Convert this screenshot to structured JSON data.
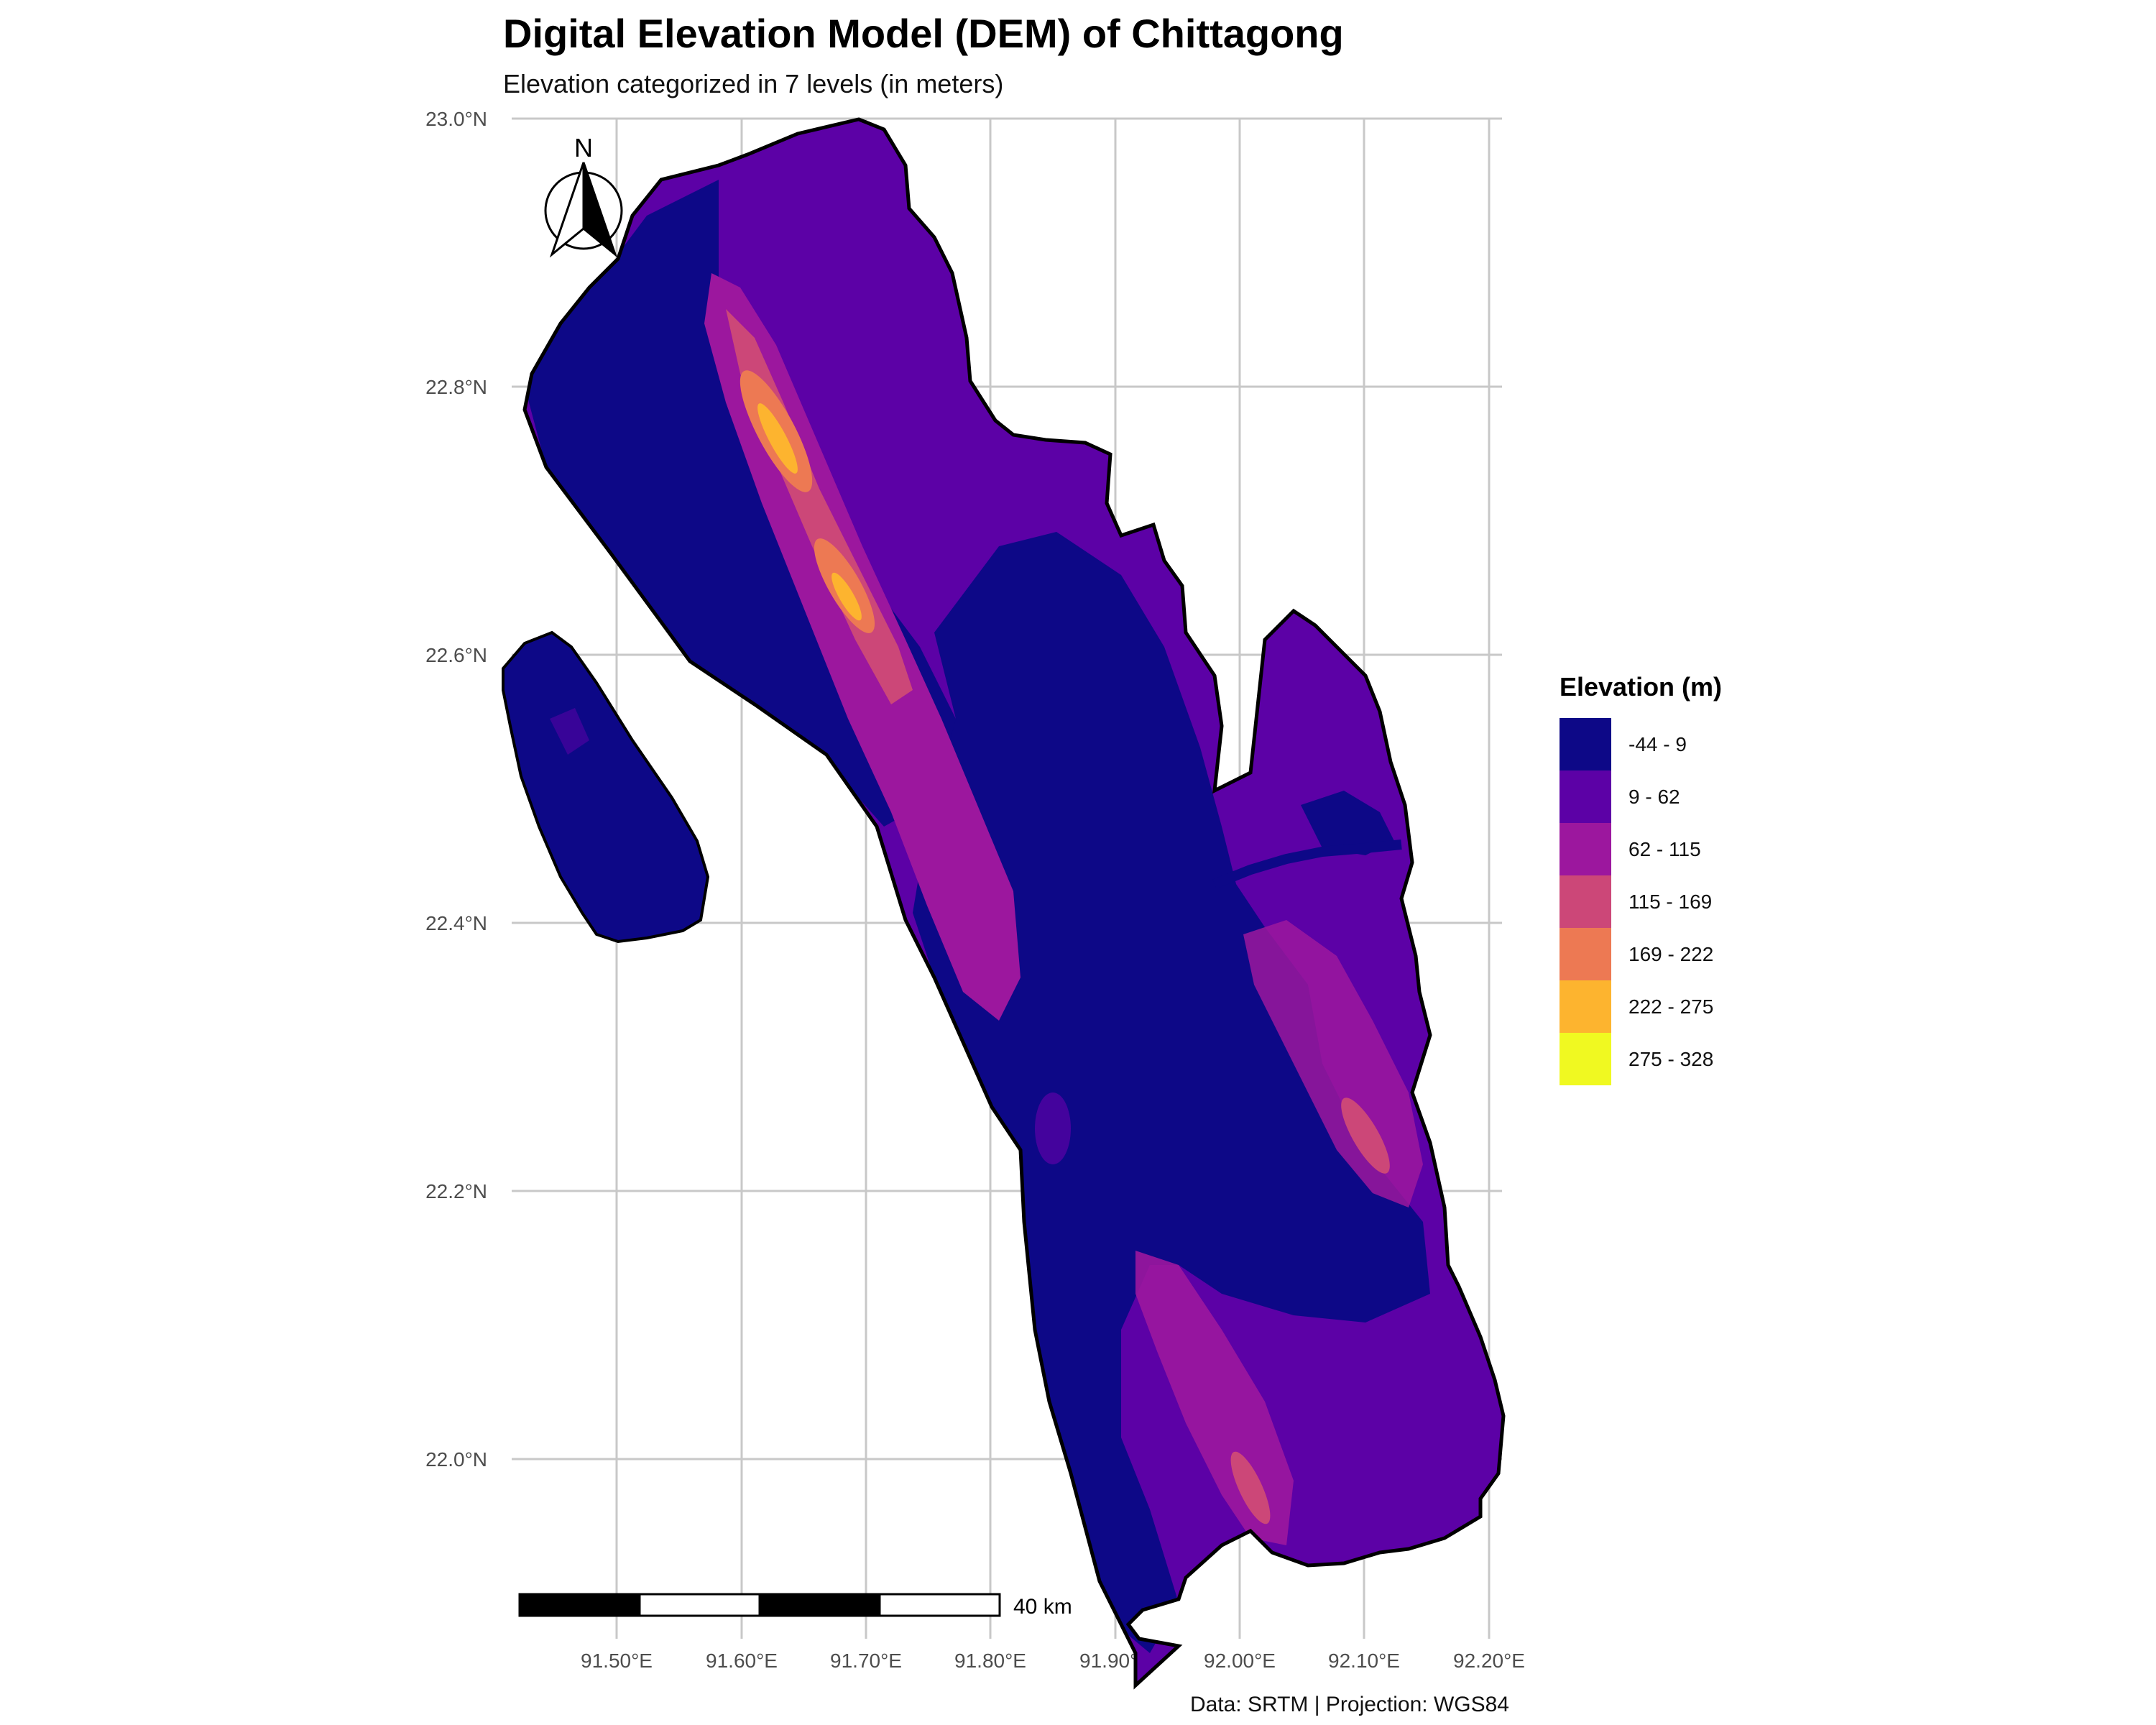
{
  "title": "Digital Elevation Model (DEM) of Chittagong",
  "subtitle": "Elevation categorized in 7 levels (in meters)",
  "caption": "Data: SRTM | Projection: WGS84",
  "north_arrow": {
    "label": "N",
    "icon": "north-arrow-icon"
  },
  "scale_bar": {
    "label": "40 km",
    "segments": 4
  },
  "axes": {
    "x_ticks": [
      "91.50°E",
      "91.60°E",
      "91.70°E",
      "91.80°E",
      "91.90°E",
      "92.00°E",
      "92.10°E",
      "92.20°E"
    ],
    "y_ticks": [
      "23.0°N",
      "22.8°N",
      "22.6°N",
      "22.4°N",
      "22.2°N",
      "22.0°N"
    ]
  },
  "legend": {
    "title": "Elevation (m)",
    "items": [
      {
        "label": "-44 - 9",
        "color": "#0d0887"
      },
      {
        "label": "9 - 62",
        "color": "#5c01a6"
      },
      {
        "label": "62 - 115",
        "color": "#9c179e"
      },
      {
        "label": "115 - 169",
        "color": "#cc4778"
      },
      {
        "label": "169 - 222",
        "color": "#ed7953"
      },
      {
        "label": "222 - 275",
        "color": "#fdb42f"
      },
      {
        "label": "275 - 328",
        "color": "#f0f921"
      }
    ]
  },
  "colors": {
    "grid": "#c8c8c8",
    "border": "#000000"
  }
}
